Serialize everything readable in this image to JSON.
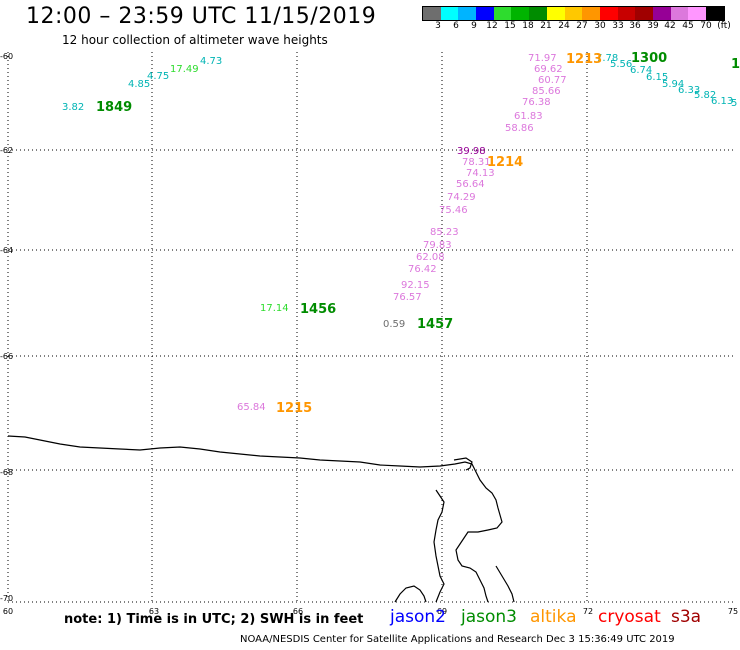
{
  "header": {
    "title": "12:00 – 23:59 UTC 11/15/2019",
    "subtitle": "12 hour collection of altimeter wave heights"
  },
  "colorbar": {
    "colors": [
      "#6e6e6e",
      "#00ffff",
      "#00b4ff",
      "#0000ff",
      "#2edc2e",
      "#00b400",
      "#008c00",
      "#ffff00",
      "#ffc800",
      "#ff9600",
      "#ff0000",
      "#c80000",
      "#a00000",
      "#960096",
      "#dc78dc",
      "#ff96ff",
      "#000000"
    ],
    "labels": [
      "3",
      "6",
      "9",
      "12",
      "15",
      "18",
      "21",
      "24",
      "27",
      "30",
      "33",
      "36",
      "39",
      "42",
      "45",
      "70",
      "(ft)"
    ]
  },
  "axes": {
    "lat_labels": [
      "-60",
      "-62",
      "-64",
      "-66",
      "-68",
      "-70"
    ],
    "lon_labels": [
      "60",
      "63",
      "66",
      "69",
      "72",
      "75"
    ]
  },
  "wave_readings": [
    {
      "text": "4.73",
      "color": "#00b4b4"
    },
    {
      "text": "17.49",
      "color": "#2edc2e"
    },
    {
      "text": "4.75",
      "color": "#00b4b4"
    },
    {
      "text": "4.85",
      "color": "#00b4b4"
    },
    {
      "text": "3.82",
      "color": "#00b4b4"
    },
    {
      "text": "71.97",
      "color": "#dc78dc"
    },
    {
      "text": "69.62",
      "color": "#dc78dc"
    },
    {
      "text": "60.77",
      "color": "#dc78dc"
    },
    {
      "text": "85.66",
      "color": "#dc78dc"
    },
    {
      "text": "76.38",
      "color": "#dc78dc"
    },
    {
      "text": "61.83",
      "color": "#dc78dc"
    },
    {
      "text": "58.86",
      "color": "#dc78dc"
    },
    {
      "text": "39.98",
      "color": "#960096"
    },
    {
      "text": "78.31",
      "color": "#dc78dc"
    },
    {
      "text": "74.13",
      "color": "#dc78dc"
    },
    {
      "text": "56.64",
      "color": "#dc78dc"
    },
    {
      "text": "74.29",
      "color": "#dc78dc"
    },
    {
      "text": "75.46",
      "color": "#dc78dc"
    },
    {
      "text": "85.23",
      "color": "#dc78dc"
    },
    {
      "text": "79.83",
      "color": "#dc78dc"
    },
    {
      "text": "62.08",
      "color": "#dc78dc"
    },
    {
      "text": "76.42",
      "color": "#dc78dc"
    },
    {
      "text": "92.15",
      "color": "#dc78dc"
    },
    {
      "text": "76.57",
      "color": "#dc78dc"
    },
    {
      "text": "17.14",
      "color": "#2edc2e"
    },
    {
      "text": "0.59",
      "color": "#6e6e6e"
    },
    {
      "text": "65.84",
      "color": "#dc78dc"
    },
    {
      "text": "7.78",
      "color": "#00b4b4"
    },
    {
      "text": "5.56",
      "color": "#00b4b4"
    },
    {
      "text": "6.74",
      "color": "#00b4b4"
    },
    {
      "text": "6.15",
      "color": "#00b4b4"
    },
    {
      "text": "5.94",
      "color": "#00b4b4"
    },
    {
      "text": "6.33",
      "color": "#00b4b4"
    },
    {
      "text": "5.82",
      "color": "#00b4b4"
    },
    {
      "text": "6.13",
      "color": "#00b4b4"
    },
    {
      "text": "5",
      "color": "#00b4b4"
    }
  ],
  "time_labels": [
    {
      "text": "1849",
      "color": "#008c00"
    },
    {
      "text": "1213",
      "color": "#ff9600"
    },
    {
      "text": "1300",
      "color": "#008c00"
    },
    {
      "text": "1214",
      "color": "#ff9600"
    },
    {
      "text": "1456",
      "color": "#008c00"
    },
    {
      "text": "1457",
      "color": "#008c00"
    },
    {
      "text": "1215",
      "color": "#ff9600"
    },
    {
      "text": "1",
      "color": "#008c00"
    }
  ],
  "footer": {
    "note": "note: 1) Time is in UTC; 2) SWH is in feet",
    "satellites": [
      {
        "name": "jason2",
        "color": "#0000ff"
      },
      {
        "name": "jason3",
        "color": "#008c00"
      },
      {
        "name": "altika",
        "color": "#ff9600"
      },
      {
        "name": "cryosat",
        "color": "#ff0000"
      },
      {
        "name": "s3a",
        "color": "#a00000"
      }
    ],
    "credit": "NOAA/NESDIS Center for Satellite Applications and Research    Dec  3 15:36:49 UTC 2019"
  }
}
